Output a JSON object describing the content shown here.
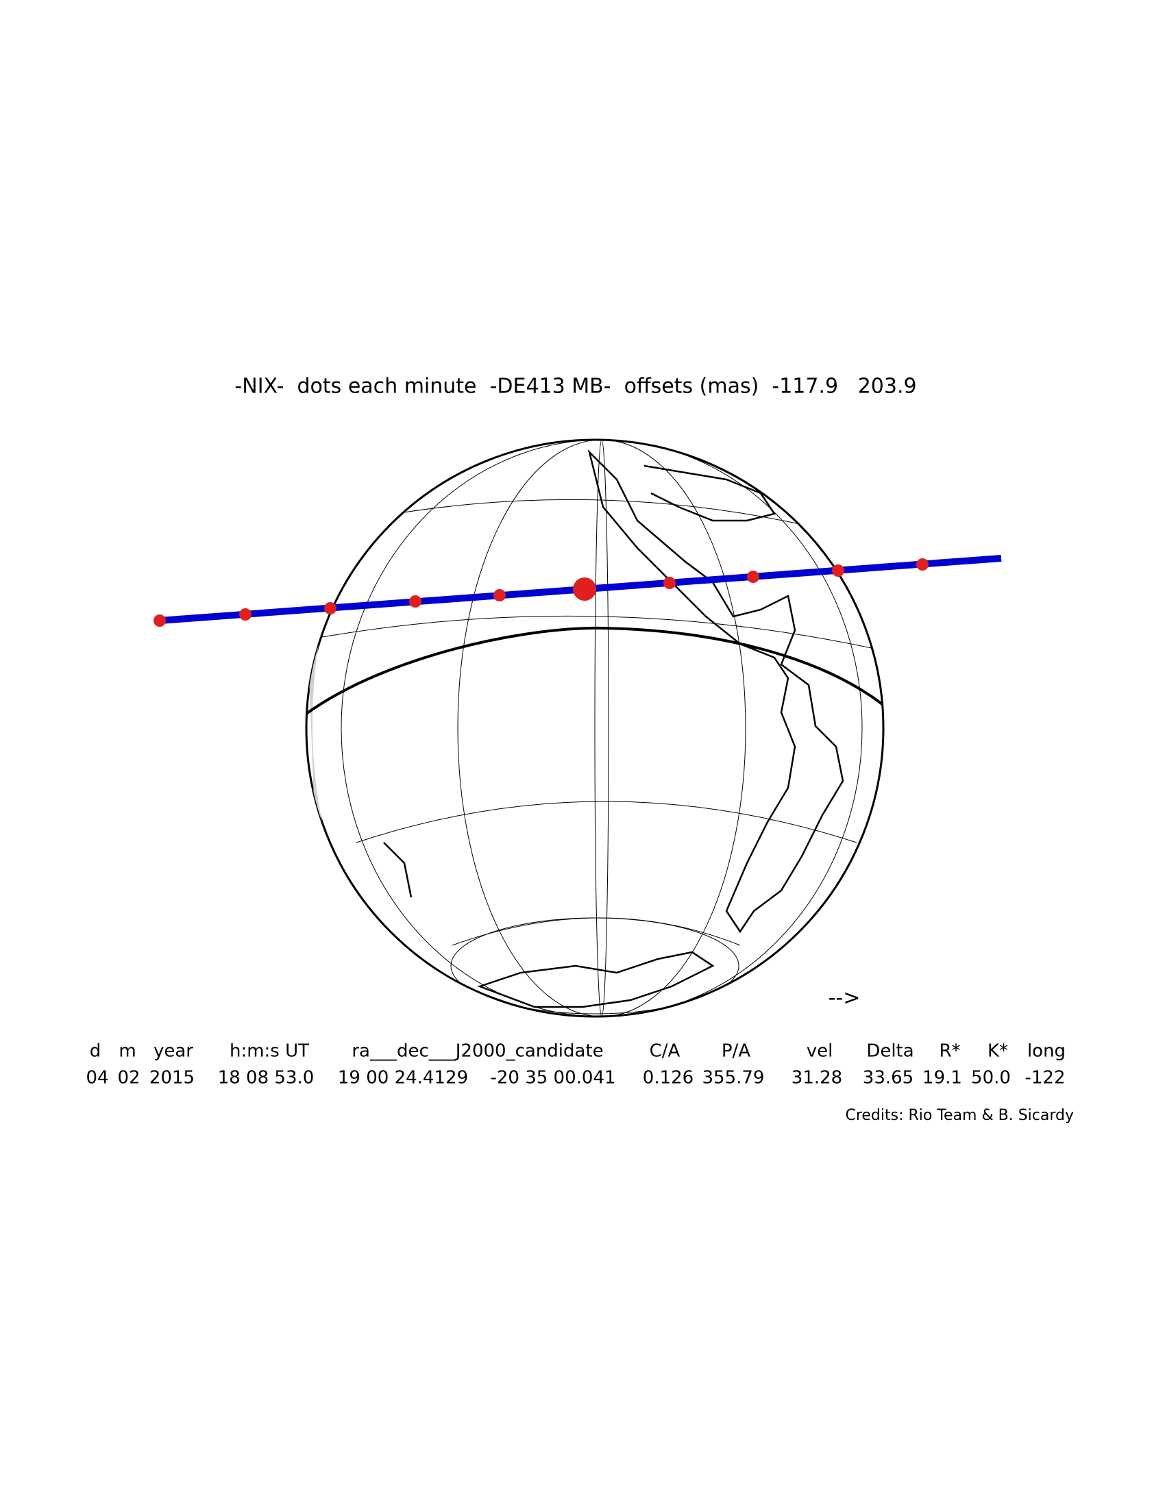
{
  "title": "-NIX-  dots each minute  -DE413 MB-  offsets (mas)  -117.9   203.9",
  "arrow": "-->",
  "table": {
    "headers": [
      "d",
      "m",
      "year",
      "h:m:s UT",
      "ra___dec___J2000_candidate",
      "C/A",
      "P/A",
      "vel",
      "Delta",
      "R*",
      "K*",
      "long"
    ],
    "values": [
      "04",
      "02",
      "2015",
      "18 08 53.0",
      "19 00 24.4129",
      "-20 35 00.041",
      "0.126",
      "355.79",
      "31.28",
      "33.65",
      "19.1",
      "50.0",
      "-122"
    ]
  },
  "credits": "Credits: Rio Team & B. Sicardy"
}
